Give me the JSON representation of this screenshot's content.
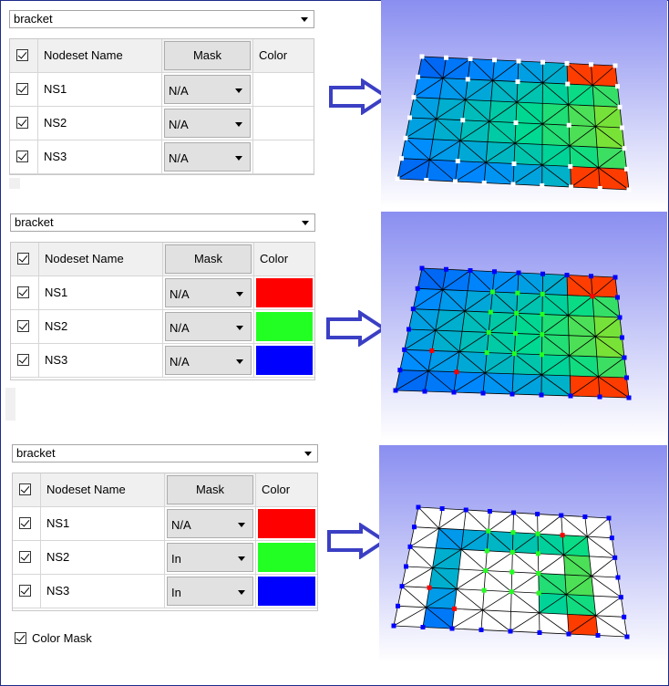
{
  "panels": [
    {
      "dropdown": "bracket",
      "headers": {
        "name": "Nodeset Name",
        "mask": "Mask",
        "color": "Color"
      },
      "rows": [
        {
          "name": "NS1",
          "mask": "N/A",
          "color": ""
        },
        {
          "name": "NS2",
          "mask": "N/A",
          "color": ""
        },
        {
          "name": "NS3",
          "mask": "N/A",
          "color": ""
        }
      ]
    },
    {
      "dropdown": "bracket",
      "headers": {
        "name": "Nodeset Name",
        "mask": "Mask",
        "color": "Color"
      },
      "rows": [
        {
          "name": "NS1",
          "mask": "N/A",
          "color": "#ff0000"
        },
        {
          "name": "NS2",
          "mask": "N/A",
          "color": "#22ff22"
        },
        {
          "name": "NS3",
          "mask": "N/A",
          "color": "#0000ff"
        }
      ]
    },
    {
      "dropdown": "bracket",
      "headers": {
        "name": "Nodeset Name",
        "mask": "Mask",
        "color": "Color"
      },
      "rows": [
        {
          "name": "NS1",
          "mask": "N/A",
          "color": "#ff0000"
        },
        {
          "name": "NS2",
          "mask": "In",
          "color": "#22ff22"
        },
        {
          "name": "NS3",
          "mask": "In",
          "color": "#0000ff"
        }
      ]
    }
  ],
  "color_mask": {
    "label": "Color Mask",
    "checked": true
  },
  "colors": {
    "arrow": "#3b3fc4",
    "viewport_top": "#8a8ef0",
    "viewport_bottom": "#ffffff",
    "frame": "#1f2a8a"
  },
  "icons": [
    "checkbox-icon",
    "dropdown-caret-icon",
    "right-arrow-icon"
  ]
}
